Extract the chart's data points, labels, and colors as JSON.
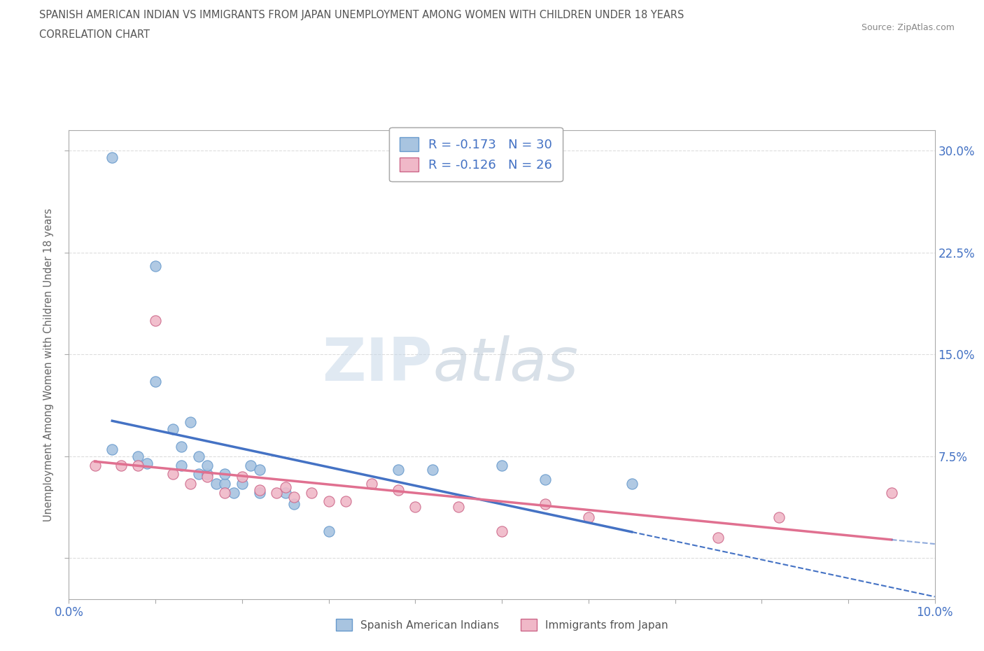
{
  "title_line1": "SPANISH AMERICAN INDIAN VS IMMIGRANTS FROM JAPAN UNEMPLOYMENT AMONG WOMEN WITH CHILDREN UNDER 18 YEARS",
  "title_line2": "CORRELATION CHART",
  "source": "Source: ZipAtlas.com",
  "ylabel": "Unemployment Among Women with Children Under 18 years",
  "xlim": [
    0.0,
    0.1
  ],
  "ylim": [
    -0.03,
    0.315
  ],
  "ytick_vals": [
    0.0,
    0.075,
    0.15,
    0.225,
    0.3
  ],
  "ytick_labels_right": [
    "",
    "7.5%",
    "15.0%",
    "22.5%",
    "30.0%"
  ],
  "watermark_zip": "ZIP",
  "watermark_atlas": "atlas",
  "blue_color": "#a8c4e0",
  "blue_edge_color": "#6699cc",
  "pink_color": "#f0b8c8",
  "pink_edge_color": "#cc6688",
  "trend_blue_color": "#4472c4",
  "trend_pink_color": "#e07090",
  "blue_points_x": [
    0.005,
    0.01,
    0.005,
    0.008,
    0.009,
    0.01,
    0.012,
    0.013,
    0.013,
    0.014,
    0.015,
    0.015,
    0.016,
    0.016,
    0.017,
    0.018,
    0.018,
    0.019,
    0.02,
    0.021,
    0.022,
    0.022,
    0.025,
    0.026,
    0.03,
    0.038,
    0.042,
    0.05,
    0.055,
    0.065
  ],
  "blue_points_y": [
    0.295,
    0.215,
    0.08,
    0.075,
    0.07,
    0.13,
    0.095,
    0.068,
    0.082,
    0.1,
    0.075,
    0.062,
    0.062,
    0.068,
    0.055,
    0.055,
    0.062,
    0.048,
    0.055,
    0.068,
    0.048,
    0.065,
    0.048,
    0.04,
    0.02,
    0.065,
    0.065,
    0.068,
    0.058,
    0.055
  ],
  "pink_points_x": [
    0.003,
    0.006,
    0.008,
    0.01,
    0.012,
    0.014,
    0.016,
    0.018,
    0.02,
    0.022,
    0.024,
    0.025,
    0.026,
    0.028,
    0.03,
    0.032,
    0.035,
    0.038,
    0.04,
    0.045,
    0.05,
    0.055,
    0.06,
    0.075,
    0.082,
    0.095
  ],
  "pink_points_y": [
    0.068,
    0.068,
    0.068,
    0.175,
    0.062,
    0.055,
    0.06,
    0.048,
    0.06,
    0.05,
    0.048,
    0.052,
    0.045,
    0.048,
    0.042,
    0.042,
    0.055,
    0.05,
    0.038,
    0.038,
    0.02,
    0.04,
    0.03,
    0.015,
    0.03,
    0.048
  ],
  "legend_blue_label": "R = -0.173   N = 30",
  "legend_pink_label": "R = -0.126   N = 26",
  "bottom_legend_blue": "Spanish American Indians",
  "bottom_legend_pink": "Immigrants from Japan",
  "grid_color": "#dddddd",
  "background_color": "#ffffff",
  "tick_color": "#4472c4"
}
